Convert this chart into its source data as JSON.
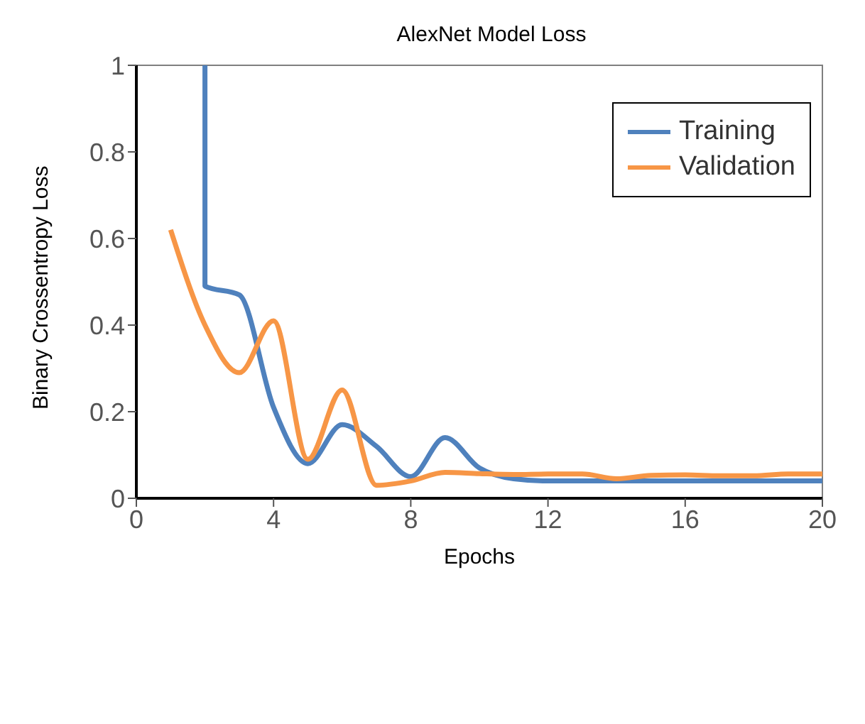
{
  "chart_data": {
    "type": "line",
    "title": "AlexNet Model Loss",
    "xlabel": "Epochs",
    "ylabel": "Binary Crossentropy Loss",
    "series": [
      {
        "name": "Training",
        "color": "#4f81bd",
        "x": [
          2,
          2,
          3,
          4,
          5,
          6,
          7,
          8,
          9,
          10,
          11,
          12,
          13,
          14,
          15,
          16,
          17,
          18,
          19,
          20
        ],
        "values": [
          1,
          0.49,
          0.47,
          0.21,
          0.08,
          0.17,
          0.12,
          0.05,
          0.14,
          0.07,
          0.045,
          0.04,
          0.04,
          0.04,
          0.04,
          0.04,
          0.04,
          0.04,
          0.04,
          0.04
        ]
      },
      {
        "name": "Validation",
        "color": "#f79646",
        "x": [
          1,
          2,
          3,
          4,
          5,
          6,
          7,
          8,
          9,
          10,
          11,
          12,
          13,
          14,
          15,
          16,
          17,
          18,
          19,
          20
        ],
        "values": [
          0.62,
          0.4,
          0.29,
          0.41,
          0.09,
          0.25,
          0.03,
          0.04,
          0.06,
          0.057,
          0.055,
          0.056,
          0.056,
          0.045,
          0.053,
          0.054,
          0.052,
          0.052,
          0.056,
          0.056
        ]
      }
    ],
    "xlim": [
      0,
      20
    ],
    "xticks": [
      0,
      4,
      8,
      12,
      16,
      20
    ],
    "ylim": [
      0,
      1
    ],
    "yticks": [
      0,
      0.2,
      0.4,
      0.6,
      0.8,
      1
    ],
    "grid": false,
    "legend": "top right",
    "marker": "none",
    "line_style": "solid"
  }
}
